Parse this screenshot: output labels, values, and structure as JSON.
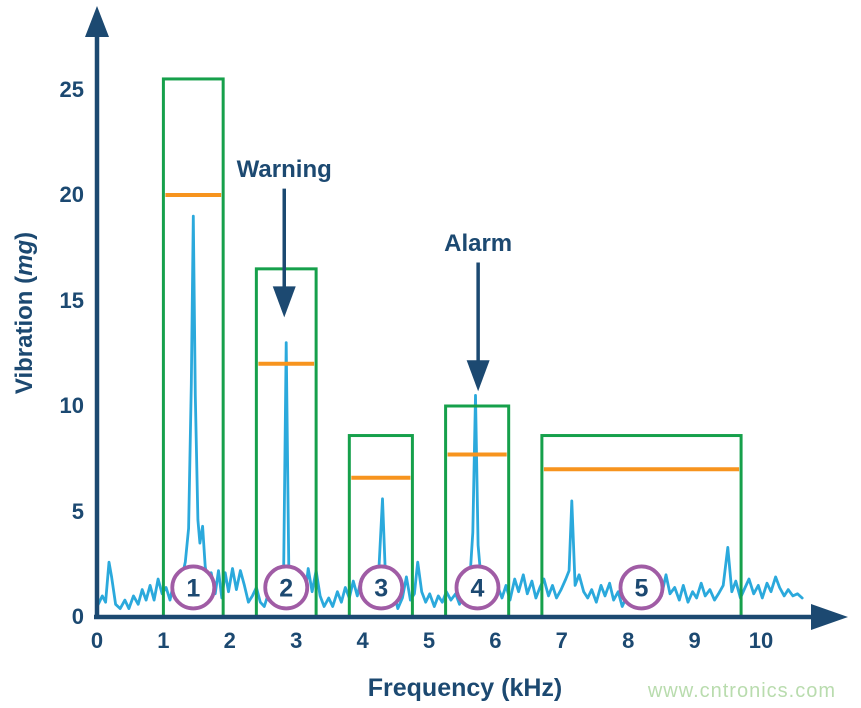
{
  "watermark": {
    "text": "www.cntronics.com",
    "color": "#B9DCAE"
  },
  "colors": {
    "navy": "#1C4971",
    "spectrum_cyan": "#2BA9DC",
    "band_green": "#16A04B",
    "warning_orange": "#F7941E",
    "circle_purple": "#A05CA5",
    "background": "#FFFFFF"
  },
  "chart_data": {
    "type": "line",
    "title": "",
    "xlabel": "Frequency (kHz)",
    "ylabel": "Vibration (mg)",
    "ylabel_prefix": "Vibration (",
    "ylabel_italic": "mg",
    "ylabel_suffix": ")",
    "xlim": [
      0,
      11.3
    ],
    "ylim": [
      0,
      28
    ],
    "grid": false,
    "legend_position": "none",
    "x_ticks": [
      "0",
      "1",
      "2",
      "3",
      "4",
      "5",
      "6",
      "7",
      "8",
      "9",
      "10"
    ],
    "y_ticks": [
      "0",
      "5",
      "10",
      "15",
      "20",
      "25"
    ],
    "x_tick_values": [
      0,
      1,
      2,
      3,
      4,
      5,
      6,
      7,
      8,
      9,
      10
    ],
    "y_tick_values": [
      0,
      5,
      10,
      15,
      20,
      25
    ],
    "bands": [
      {
        "id": "1",
        "x_start_khz": 1.0,
        "x_end_khz": 1.9,
        "alarm_top_mg": 25.5,
        "warning_mg": 20.0,
        "circle_x_khz": 1.45,
        "circle_y_mg": 1.4
      },
      {
        "id": "2",
        "x_start_khz": 2.4,
        "x_end_khz": 3.3,
        "alarm_top_mg": 16.5,
        "warning_mg": 12.0,
        "circle_x_khz": 2.85,
        "circle_y_mg": 1.4
      },
      {
        "id": "3",
        "x_start_khz": 3.8,
        "x_end_khz": 4.75,
        "alarm_top_mg": 8.6,
        "warning_mg": 6.6,
        "circle_x_khz": 4.28,
        "circle_y_mg": 1.4
      },
      {
        "id": "4",
        "x_start_khz": 5.25,
        "x_end_khz": 6.2,
        "alarm_top_mg": 10.0,
        "warning_mg": 7.7,
        "circle_x_khz": 5.73,
        "circle_y_mg": 1.4
      },
      {
        "id": "5",
        "x_start_khz": 6.7,
        "x_end_khz": 9.7,
        "alarm_top_mg": 8.6,
        "warning_mg": 7.0,
        "circle_x_khz": 8.2,
        "circle_y_mg": 1.4
      }
    ],
    "annotations": [
      {
        "label": "Warning",
        "x_khz": 2.82,
        "label_mg": 21.2,
        "arrow_from_mg": 20.3,
        "arrow_to_mg": 14.2
      },
      {
        "label": "Alarm",
        "x_khz": 5.74,
        "label_mg": 17.7,
        "arrow_from_mg": 16.8,
        "arrow_to_mg": 10.7
      }
    ],
    "peaks": [
      [
        1.45,
        19.0
      ],
      [
        2.85,
        13.0
      ],
      [
        4.3,
        5.6
      ],
      [
        5.7,
        10.5
      ],
      [
        7.15,
        5.5
      ],
      [
        9.5,
        3.3
      ]
    ],
    "series": [
      {
        "name": "vibration-spectrum",
        "points": [
          [
            0.02,
            0.6
          ],
          [
            0.08,
            1.0
          ],
          [
            0.13,
            0.7
          ],
          [
            0.18,
            2.6
          ],
          [
            0.22,
            1.9
          ],
          [
            0.28,
            0.6
          ],
          [
            0.35,
            0.4
          ],
          [
            0.42,
            0.8
          ],
          [
            0.48,
            0.4
          ],
          [
            0.55,
            1.0
          ],
          [
            0.62,
            0.6
          ],
          [
            0.68,
            1.3
          ],
          [
            0.74,
            0.8
          ],
          [
            0.8,
            1.5
          ],
          [
            0.86,
            0.8
          ],
          [
            0.92,
            1.8
          ],
          [
            0.98,
            1.1
          ],
          [
            1.04,
            1.4
          ],
          [
            1.1,
            0.8
          ],
          [
            1.16,
            1.7
          ],
          [
            1.22,
            1.1
          ],
          [
            1.28,
            1.9
          ],
          [
            1.33,
            2.6
          ],
          [
            1.38,
            4.2
          ],
          [
            1.42,
            11.0
          ],
          [
            1.45,
            19.0
          ],
          [
            1.48,
            10.5
          ],
          [
            1.52,
            4.6
          ],
          [
            1.55,
            3.5
          ],
          [
            1.59,
            4.3
          ],
          [
            1.63,
            2.4
          ],
          [
            1.68,
            1.4
          ],
          [
            1.72,
            2.1
          ],
          [
            1.78,
            1.1
          ],
          [
            1.83,
            2.2
          ],
          [
            1.88,
            0.9
          ],
          [
            1.93,
            2.1
          ],
          [
            1.98,
            1.2
          ],
          [
            2.04,
            2.3
          ],
          [
            2.1,
            1.3
          ],
          [
            2.16,
            2.2
          ],
          [
            2.22,
            1.5
          ],
          [
            2.28,
            0.7
          ],
          [
            2.34,
            1.0
          ],
          [
            2.4,
            1.4
          ],
          [
            2.46,
            0.7
          ],
          [
            2.52,
            0.5
          ],
          [
            2.58,
            1.1
          ],
          [
            2.64,
            0.7
          ],
          [
            2.7,
            1.1
          ],
          [
            2.76,
            0.8
          ],
          [
            2.81,
            2.0
          ],
          [
            2.85,
            13.0
          ],
          [
            2.89,
            1.9
          ],
          [
            2.95,
            1.1
          ],
          [
            3.01,
            0.7
          ],
          [
            3.07,
            1.4
          ],
          [
            3.13,
            0.9
          ],
          [
            3.18,
            2.3
          ],
          [
            3.24,
            1.2
          ],
          [
            3.3,
            2.2
          ],
          [
            3.36,
            1.0
          ],
          [
            3.42,
            0.5
          ],
          [
            3.49,
            0.9
          ],
          [
            3.55,
            0.5
          ],
          [
            3.62,
            1.2
          ],
          [
            3.68,
            0.7
          ],
          [
            3.74,
            1.4
          ],
          [
            3.8,
            0.9
          ],
          [
            3.86,
            1.7
          ],
          [
            3.92,
            1.0
          ],
          [
            3.98,
            1.8
          ],
          [
            4.04,
            0.9
          ],
          [
            4.1,
            1.2
          ],
          [
            4.17,
            0.7
          ],
          [
            4.24,
            1.9
          ],
          [
            4.3,
            5.6
          ],
          [
            4.35,
            1.5
          ],
          [
            4.41,
            0.8
          ],
          [
            4.47,
            1.2
          ],
          [
            4.53,
            0.4
          ],
          [
            4.6,
            0.9
          ],
          [
            4.66,
            1.9
          ],
          [
            4.72,
            0.8
          ],
          [
            4.78,
            1.1
          ],
          [
            4.83,
            2.6
          ],
          [
            4.89,
            1.2
          ],
          [
            4.95,
            0.7
          ],
          [
            5.01,
            1.1
          ],
          [
            5.08,
            0.5
          ],
          [
            5.14,
            1.0
          ],
          [
            5.2,
            0.7
          ],
          [
            5.26,
            1.2
          ],
          [
            5.33,
            0.8
          ],
          [
            5.4,
            1.1
          ],
          [
            5.46,
            0.6
          ],
          [
            5.53,
            1.1
          ],
          [
            5.6,
            1.0
          ],
          [
            5.66,
            4.0
          ],
          [
            5.7,
            10.5
          ],
          [
            5.74,
            3.4
          ],
          [
            5.8,
            1.2
          ],
          [
            5.86,
            0.7
          ],
          [
            5.92,
            1.5
          ],
          [
            5.98,
            0.8
          ],
          [
            6.04,
            1.4
          ],
          [
            6.1,
            0.9
          ],
          [
            6.16,
            1.5
          ],
          [
            6.22,
            0.8
          ],
          [
            6.29,
            1.8
          ],
          [
            6.35,
            1.2
          ],
          [
            6.42,
            2.0
          ],
          [
            6.48,
            1.1
          ],
          [
            6.55,
            1.7
          ],
          [
            6.61,
            0.9
          ],
          [
            6.67,
            1.4
          ],
          [
            6.73,
            1.8
          ],
          [
            6.8,
            1.0
          ],
          [
            6.86,
            1.5
          ],
          [
            6.92,
            0.9
          ],
          [
            6.99,
            1.3
          ],
          [
            7.06,
            1.8
          ],
          [
            7.11,
            2.2
          ],
          [
            7.15,
            5.5
          ],
          [
            7.2,
            1.5
          ],
          [
            7.26,
            2.0
          ],
          [
            7.33,
            1.2
          ],
          [
            7.39,
            0.9
          ],
          [
            7.45,
            1.3
          ],
          [
            7.52,
            0.7
          ],
          [
            7.59,
            1.5
          ],
          [
            7.65,
            1.0
          ],
          [
            7.72,
            1.6
          ],
          [
            7.78,
            0.8
          ],
          [
            7.85,
            1.2
          ],
          [
            7.91,
            0.5
          ],
          [
            7.98,
            1.0
          ],
          [
            8.04,
            1.4
          ],
          [
            8.1,
            0.8
          ],
          [
            8.17,
            1.1
          ],
          [
            8.23,
            0.7
          ],
          [
            8.3,
            1.2
          ],
          [
            8.37,
            0.9
          ],
          [
            8.43,
            1.6
          ],
          [
            8.5,
            1.0
          ],
          [
            8.57,
            2.0
          ],
          [
            8.63,
            1.1
          ],
          [
            8.7,
            1.4
          ],
          [
            8.77,
            0.8
          ],
          [
            8.83,
            1.5
          ],
          [
            8.9,
            0.7
          ],
          [
            8.97,
            1.2
          ],
          [
            9.03,
            0.9
          ],
          [
            9.1,
            1.6
          ],
          [
            9.16,
            1.0
          ],
          [
            9.23,
            1.3
          ],
          [
            9.3,
            0.8
          ],
          [
            9.36,
            1.1
          ],
          [
            9.43,
            1.5
          ],
          [
            9.5,
            3.3
          ],
          [
            9.56,
            1.2
          ],
          [
            9.62,
            1.7
          ],
          [
            9.69,
            0.9
          ],
          [
            9.76,
            1.4
          ],
          [
            9.82,
            1.8
          ],
          [
            9.89,
            1.1
          ],
          [
            9.96,
            1.5
          ],
          [
            10.02,
            0.9
          ],
          [
            10.09,
            1.6
          ],
          [
            10.15,
            1.2
          ],
          [
            10.22,
            1.9
          ],
          [
            10.28,
            1.4
          ],
          [
            10.35,
            1.0
          ],
          [
            10.41,
            1.3
          ],
          [
            10.48,
            1.0
          ],
          [
            10.55,
            1.1
          ],
          [
            10.62,
            0.9
          ]
        ]
      }
    ]
  }
}
